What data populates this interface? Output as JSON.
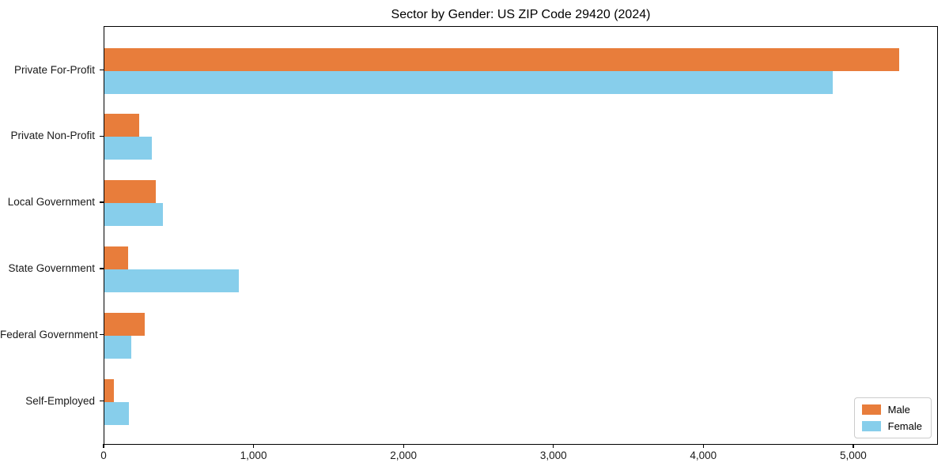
{
  "figure": {
    "background": "#ffffff"
  },
  "chart_data": {
    "type": "bar",
    "orientation": "horizontal",
    "title": "Sector by Gender: US ZIP Code 29420 (2024)",
    "categories": [
      "Private For-Profit",
      "Private Non-Profit",
      "Local Government",
      "State Government",
      "Federal Government",
      "Self-Employed"
    ],
    "series": [
      {
        "name": "Male",
        "color": "#e87d3b",
        "values": [
          5300,
          230,
          345,
          160,
          270,
          65
        ]
      },
      {
        "name": "Female",
        "color": "#87ceeb",
        "values": [
          4860,
          315,
          390,
          895,
          180,
          165
        ]
      }
    ],
    "xlabel": "",
    "ylabel": "",
    "xlim": [
      0,
      5565
    ],
    "xticks": [
      0,
      1000,
      2000,
      3000,
      4000,
      5000
    ],
    "xtick_labels": [
      "0",
      "1,000",
      "2,000",
      "3,000",
      "4,000",
      "5,000"
    ],
    "grid": false,
    "legend": {
      "position": "lower right",
      "entries": [
        "Male",
        "Female"
      ]
    },
    "colors": {
      "axis": "#000000",
      "text": "#1a1a1a",
      "legend_border": "#cccccc"
    }
  }
}
